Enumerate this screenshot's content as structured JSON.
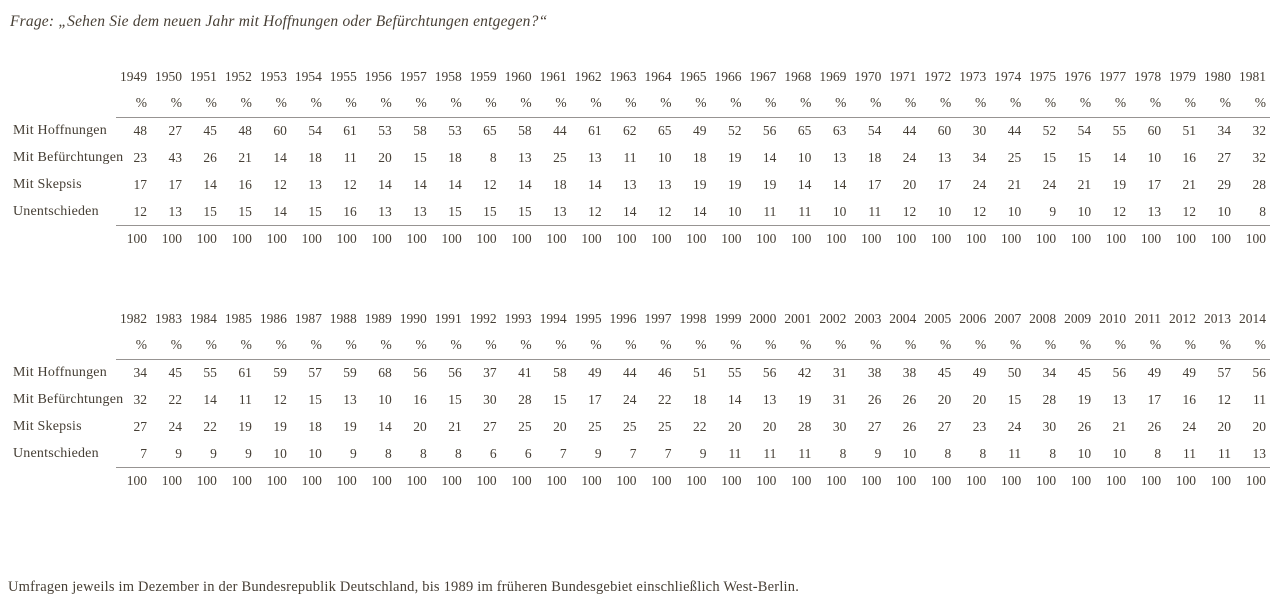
{
  "page": {
    "title": "Frage: „Sehen Sie dem neuen Jahr mit Hoffnungen oder Befürchtungen entgegen?“",
    "footnote": "Umfragen jeweils im Dezember in der Bundesrepublik Deutschland, bis 1989 im früheren Bundesgebiet einschließlich West-Berlin.",
    "percent_sign": "%"
  },
  "colors": {
    "text": "#453e34",
    "rule": "#979492",
    "background": "#ffffff"
  },
  "tables": [
    {
      "name": "1949-1981",
      "years": [
        "1949",
        "1950",
        "1951",
        "1952",
        "1953",
        "1954",
        "1955",
        "1956",
        "1957",
        "1958",
        "1959",
        "1960",
        "1961",
        "1962",
        "1963",
        "1964",
        "1965",
        "1966",
        "1967",
        "1968",
        "1969",
        "1970",
        "1971",
        "1972",
        "1973",
        "1974",
        "1975",
        "1976",
        "1977",
        "1978",
        "1979",
        "1980",
        "1981"
      ],
      "rows": [
        {
          "label": "Mit Hoffnungen",
          "values": [
            48,
            27,
            45,
            48,
            60,
            54,
            61,
            53,
            58,
            53,
            65,
            58,
            44,
            61,
            62,
            65,
            49,
            52,
            56,
            65,
            63,
            54,
            44,
            60,
            30,
            44,
            52,
            54,
            55,
            60,
            51,
            34,
            32
          ]
        },
        {
          "label": "Mit Befürchtungen",
          "values": [
            23,
            43,
            26,
            21,
            14,
            18,
            11,
            20,
            15,
            18,
            8,
            13,
            25,
            13,
            11,
            10,
            18,
            19,
            14,
            10,
            13,
            18,
            24,
            13,
            34,
            25,
            15,
            15,
            14,
            10,
            16,
            27,
            32
          ]
        },
        {
          "label": "Mit Skepsis",
          "values": [
            17,
            17,
            14,
            16,
            12,
            13,
            12,
            14,
            14,
            14,
            12,
            14,
            18,
            14,
            13,
            13,
            19,
            19,
            19,
            14,
            14,
            17,
            20,
            17,
            24,
            21,
            24,
            21,
            19,
            17,
            21,
            29,
            28
          ]
        },
        {
          "label": "Unentschieden",
          "values": [
            12,
            13,
            15,
            15,
            14,
            15,
            16,
            13,
            13,
            15,
            15,
            15,
            13,
            12,
            14,
            12,
            14,
            10,
            11,
            11,
            10,
            11,
            12,
            10,
            12,
            10,
            9,
            10,
            12,
            13,
            12,
            10,
            8
          ]
        }
      ],
      "totals": [
        100,
        100,
        100,
        100,
        100,
        100,
        100,
        100,
        100,
        100,
        100,
        100,
        100,
        100,
        100,
        100,
        100,
        100,
        100,
        100,
        100,
        100,
        100,
        100,
        100,
        100,
        100,
        100,
        100,
        100,
        100,
        100,
        100
      ]
    },
    {
      "name": "1982-2014",
      "years": [
        "1982",
        "1983",
        "1984",
        "1985",
        "1986",
        "1987",
        "1988",
        "1989",
        "1990",
        "1991",
        "1992",
        "1993",
        "1994",
        "1995",
        "1996",
        "1997",
        "1998",
        "1999",
        "2000",
        "2001",
        "2002",
        "2003",
        "2004",
        "2005",
        "2006",
        "2007",
        "2008",
        "2009",
        "2010",
        "2011",
        "2012",
        "2013",
        "2014"
      ],
      "rows": [
        {
          "label": "Mit Hoffnungen",
          "values": [
            34,
            45,
            55,
            61,
            59,
            57,
            59,
            68,
            56,
            56,
            37,
            41,
            58,
            49,
            44,
            46,
            51,
            55,
            56,
            42,
            31,
            38,
            38,
            45,
            49,
            50,
            34,
            45,
            56,
            49,
            49,
            57,
            56
          ]
        },
        {
          "label": "Mit Befürchtungen",
          "values": [
            32,
            22,
            14,
            11,
            12,
            15,
            13,
            10,
            16,
            15,
            30,
            28,
            15,
            17,
            24,
            22,
            18,
            14,
            13,
            19,
            31,
            26,
            26,
            20,
            20,
            15,
            28,
            19,
            13,
            17,
            16,
            12,
            11
          ]
        },
        {
          "label": "Mit Skepsis",
          "values": [
            27,
            24,
            22,
            19,
            19,
            18,
            19,
            14,
            20,
            21,
            27,
            25,
            20,
            25,
            25,
            25,
            22,
            20,
            20,
            28,
            30,
            27,
            26,
            27,
            23,
            24,
            30,
            26,
            21,
            26,
            24,
            20,
            20
          ]
        },
        {
          "label": "Unentschieden",
          "values": [
            7,
            9,
            9,
            9,
            10,
            10,
            9,
            8,
            8,
            8,
            6,
            6,
            7,
            9,
            7,
            7,
            9,
            11,
            11,
            11,
            8,
            9,
            10,
            8,
            8,
            11,
            8,
            10,
            10,
            8,
            11,
            11,
            13
          ]
        }
      ],
      "totals": [
        100,
        100,
        100,
        100,
        100,
        100,
        100,
        100,
        100,
        100,
        100,
        100,
        100,
        100,
        100,
        100,
        100,
        100,
        100,
        100,
        100,
        100,
        100,
        100,
        100,
        100,
        100,
        100,
        100,
        100,
        100,
        100,
        100
      ]
    }
  ]
}
